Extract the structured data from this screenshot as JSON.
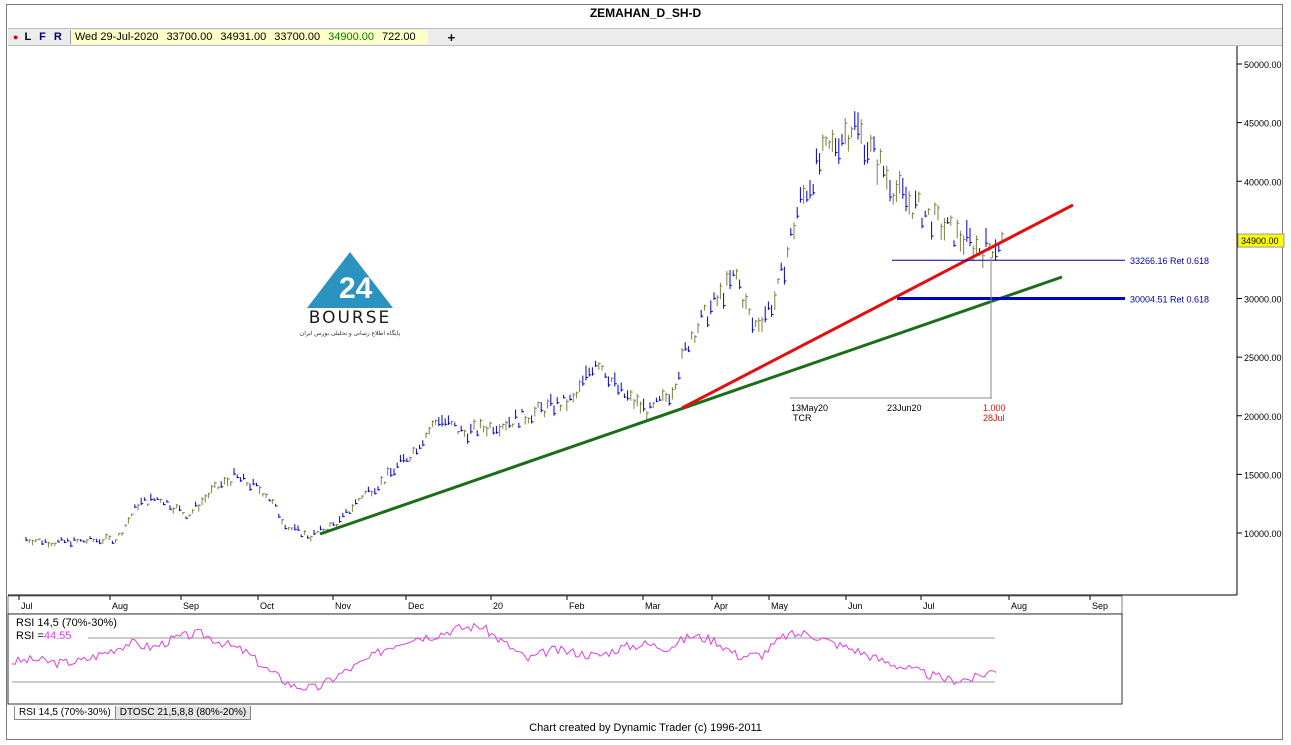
{
  "title": "ZEMAHAN_D_SH-D",
  "infobar": {
    "letters": [
      "L",
      "F",
      "R"
    ],
    "date": "Wed 29-Jul-2020",
    "open": "33700.00",
    "high": "34931.00",
    "low": "33700.00",
    "close": "34900.00",
    "change": "722.00",
    "plus": "+"
  },
  "logo": {
    "word": "BOURSE",
    "subtitle": "پایگاه اطلاع رسانی و تحلیلی بورس ایران",
    "mark": "24",
    "color": "#2a93c0"
  },
  "colors": {
    "up_bar": "#808040",
    "down_bar": "#0000cc",
    "support_line": "#1a6e1a",
    "trend_line": "#e01010",
    "retrace_strong": "#0000cc",
    "retrace_thin": "#0000aa",
    "rsi": "#e040e0"
  },
  "chart_data": [
    {
      "type": "line",
      "subtype": "price-bar",
      "title": "ZEMAHAN_D_SH-D",
      "x_ticks": [
        "Jul",
        "Aug",
        "Sep",
        "Oct",
        "Nov",
        "Dec",
        "20",
        "Feb",
        "Mar",
        "Apr",
        "May",
        "Jun",
        "Jul",
        "Aug",
        "Sep"
      ],
      "y_ticks": [
        "50000.00",
        "45000.00",
        "40000.00",
        "35000.00",
        "30000.00",
        "25000.00",
        "20000.00",
        "15000.00",
        "10000.00"
      ],
      "ylim": [
        5000,
        51000
      ],
      "last_price_label": "34900.00",
      "series": [
        {
          "values_month_idx": [
            0,
            0.3,
            0.6,
            1.0,
            1.3,
            1.6,
            2.0,
            2.3,
            2.6,
            3.0,
            3.3,
            3.6,
            4.0,
            4.3,
            4.6,
            5.0,
            5.3,
            5.6,
            6.0,
            6.3,
            6.6,
            7.0,
            7.3,
            7.6,
            8.0,
            8.3,
            8.6,
            9.0,
            9.3,
            9.6,
            10.0,
            10.3,
            10.6,
            11.0,
            11.3,
            11.6,
            12.0,
            12.3,
            12.6,
            12.85
          ],
          "values": [
            9500,
            9200,
            9300,
            9500,
            12500,
            13000,
            11500,
            13500,
            14800,
            13500,
            10500,
            9700,
            11000,
            13200,
            14500,
            17000,
            19800,
            18500,
            19300,
            19800,
            20600,
            21300,
            25000,
            22000,
            20300,
            22000,
            27000,
            30000,
            32000,
            27500,
            30000,
            38000,
            42000,
            45000,
            42000,
            39000,
            37000,
            35500,
            34200,
            34900
          ]
        }
      ],
      "annotations": [
        {
          "text": "33266.16 Ret 0.618",
          "value": 33266.16
        },
        {
          "text": "30004.51 Ret 0.618",
          "value": 30004.51
        },
        {
          "text": "13May20",
          "sub": "TCR"
        },
        {
          "text": "23Jun20"
        },
        {
          "text": "1.000",
          "sub": "28Jul"
        }
      ]
    },
    {
      "type": "line",
      "title": "RSI 14,5 (70%-30%)",
      "value_label": "RSI =",
      "value": "44.55",
      "bands": [
        70,
        30
      ],
      "values": [
        50,
        52,
        49,
        51,
        58,
        66,
        62,
        70,
        74,
        66,
        58,
        42,
        30,
        28,
        40,
        50,
        62,
        70,
        72,
        78,
        80,
        66,
        52,
        60,
        58,
        55,
        62,
        65,
        62,
        72,
        68,
        55,
        56,
        72,
        74,
        66,
        60,
        52,
        46,
        40,
        35,
        36,
        44
      ]
    }
  ],
  "tabs": [
    "RSI 14,5 (70%-30%)",
    "DTOSC 21,5,8,8 (80%-20%)"
  ],
  "footer": "Chart created by Dynamic Trader  (c) 1996-2011"
}
